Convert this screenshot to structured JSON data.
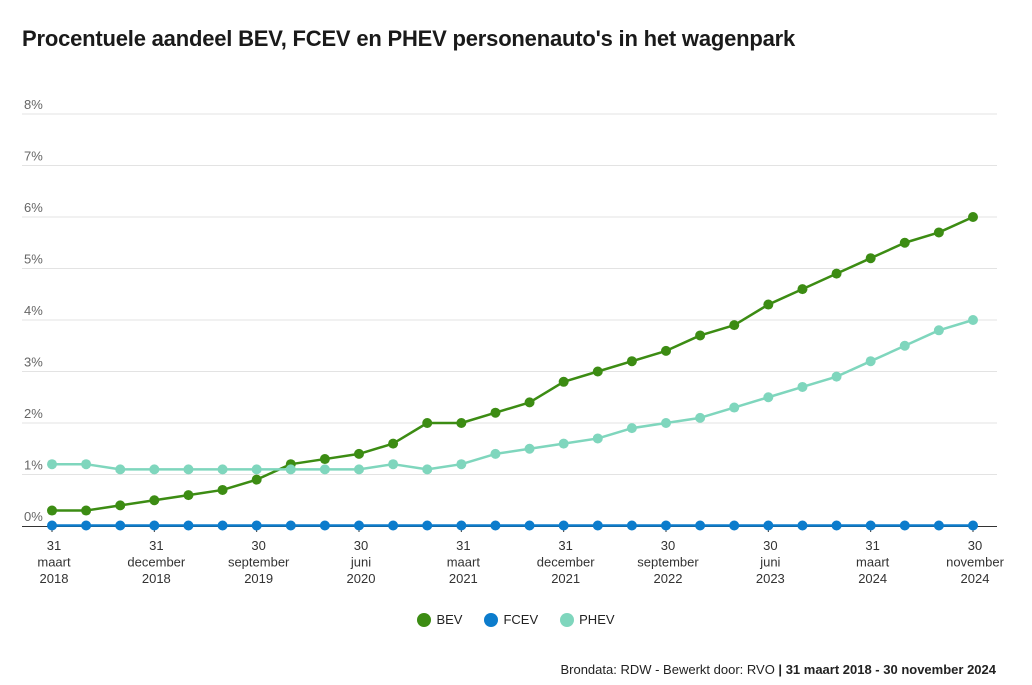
{
  "title": "Procentuele aandeel BEV, FCEV en PHEV personenauto's in het wagenpark",
  "footer": {
    "source": "Brondata: RDW - Bewerkt door: RVO",
    "separator": " | ",
    "period": "31 maart 2018 - 30 november 2024"
  },
  "chart_data": {
    "type": "line",
    "title": "Procentuele aandeel BEV, FCEV en PHEV personenauto's in het wagenpark",
    "xlabel": "",
    "ylabel": "",
    "ylim": [
      0,
      8
    ],
    "y_ticks": [
      "0%",
      "1%",
      "2%",
      "3%",
      "4%",
      "5%",
      "6%",
      "7%",
      "8%"
    ],
    "grid": true,
    "legend": "bottom-center",
    "x_count": 28,
    "x_tick_labels": [
      {
        "index": 0,
        "lines": [
          "31",
          "maart",
          "2018"
        ]
      },
      {
        "index": 3,
        "lines": [
          "31",
          "december",
          "2018"
        ]
      },
      {
        "index": 6,
        "lines": [
          "30",
          "september",
          "2019"
        ]
      },
      {
        "index": 9,
        "lines": [
          "30",
          "juni",
          "2020"
        ]
      },
      {
        "index": 12,
        "lines": [
          "31",
          "maart",
          "2021"
        ]
      },
      {
        "index": 15,
        "lines": [
          "31",
          "december",
          "2021"
        ]
      },
      {
        "index": 18,
        "lines": [
          "30",
          "september",
          "2022"
        ]
      },
      {
        "index": 21,
        "lines": [
          "30",
          "juni",
          "2023"
        ]
      },
      {
        "index": 24,
        "lines": [
          "31",
          "maart",
          "2024"
        ]
      },
      {
        "index": 27,
        "lines": [
          "30",
          "november",
          "2024"
        ]
      }
    ],
    "series": [
      {
        "name": "BEV",
        "color": "#3c8c13",
        "values": [
          0.3,
          0.3,
          0.4,
          0.5,
          0.6,
          0.7,
          0.9,
          1.2,
          1.3,
          1.4,
          1.6,
          2.0,
          2.0,
          2.2,
          2.4,
          2.8,
          3.0,
          3.2,
          3.4,
          3.7,
          3.9,
          4.3,
          4.6,
          4.9,
          5.2,
          5.5,
          5.7,
          6.0
        ]
      },
      {
        "name": "FCEV",
        "color": "#0c7ccc",
        "values": [
          0.01,
          0.01,
          0.01,
          0.01,
          0.01,
          0.01,
          0.01,
          0.01,
          0.01,
          0.01,
          0.01,
          0.01,
          0.01,
          0.01,
          0.01,
          0.01,
          0.01,
          0.01,
          0.01,
          0.01,
          0.01,
          0.01,
          0.01,
          0.01,
          0.01,
          0.01,
          0.01,
          0.01
        ]
      },
      {
        "name": "PHEV",
        "color": "#7fd6bd",
        "values": [
          1.2,
          1.2,
          1.1,
          1.1,
          1.1,
          1.1,
          1.1,
          1.1,
          1.1,
          1.1,
          1.2,
          1.1,
          1.2,
          1.4,
          1.5,
          1.6,
          1.7,
          1.9,
          2.0,
          2.1,
          2.3,
          2.5,
          2.7,
          2.9,
          3.2,
          3.5,
          3.8,
          4.0
        ]
      }
    ]
  }
}
